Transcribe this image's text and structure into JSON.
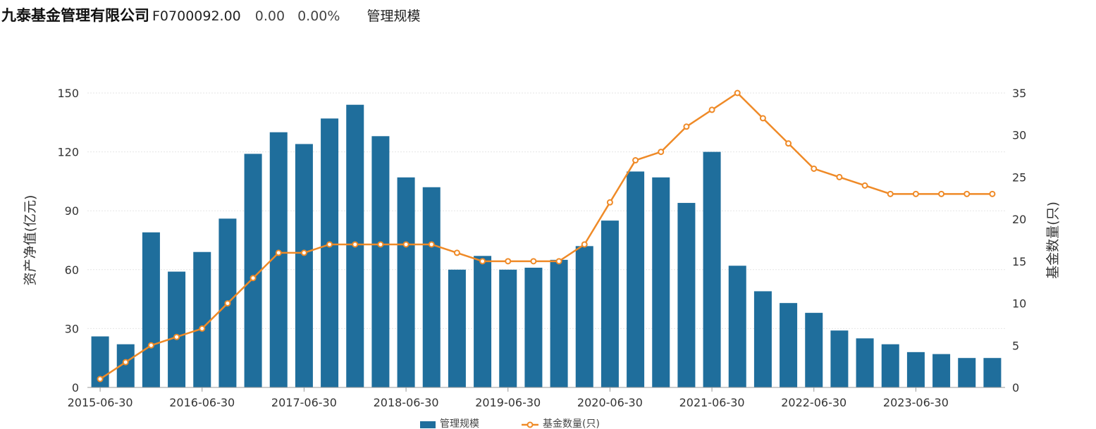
{
  "header": {
    "company": "九泰基金管理有限公司",
    "code": "F0700092.00",
    "price": "0.00",
    "change_pct": "0.00%",
    "tab": "管理规模"
  },
  "colors": {
    "bar": "#1f6e9c",
    "line": "#ef8a27"
  },
  "chart_data": {
    "type": "bar",
    "categories": [
      "2015-06-30",
      "2015-09-30",
      "2015-12-31",
      "2016-03-31",
      "2016-06-30",
      "2016-09-30",
      "2016-12-31",
      "2017-03-31",
      "2017-06-30",
      "2017-09-30",
      "2017-12-31",
      "2018-03-31",
      "2018-06-30",
      "2018-09-30",
      "2018-12-31",
      "2019-03-31",
      "2019-06-30",
      "2019-09-30",
      "2019-12-31",
      "2020-03-31",
      "2020-06-30",
      "2020-09-30",
      "2020-12-31",
      "2021-03-31",
      "2021-06-30",
      "2021-09-30",
      "2021-12-31",
      "2022-03-31",
      "2022-06-30",
      "2022-09-30",
      "2022-12-31",
      "2023-03-31",
      "2023-06-30",
      "2023-09-30",
      "2023-12-31",
      "2024-03-31"
    ],
    "x_tick_labels": [
      "2015-06-30",
      "2016-06-30",
      "2017-06-30",
      "2018-06-30",
      "2019-06-30",
      "2020-06-30",
      "2021-06-30",
      "2022-06-30",
      "2023-06-30"
    ],
    "series": [
      {
        "name": "管理规模",
        "axis": "left",
        "type": "bar",
        "values": [
          26,
          22,
          79,
          59,
          69,
          86,
          119,
          130,
          124,
          137,
          144,
          128,
          107,
          102,
          60,
          67,
          60,
          61,
          65,
          72,
          85,
          110,
          107,
          94,
          120,
          62,
          49,
          43,
          38,
          29,
          25,
          22,
          18,
          17,
          15,
          15
        ]
      },
      {
        "name": "基金数量(只)",
        "axis": "right",
        "type": "line",
        "values": [
          1,
          3,
          5,
          6,
          7,
          10,
          13,
          16,
          16,
          17,
          17,
          17,
          17,
          17,
          16,
          15,
          15,
          15,
          15,
          17,
          22,
          27,
          28,
          31,
          33,
          35,
          32,
          29,
          26,
          25,
          24,
          23,
          23,
          23,
          23,
          23
        ]
      }
    ],
    "y_left": {
      "label": "资产净值(亿元)",
      "ticks": [
        "0",
        "30",
        "60",
        "90",
        "120",
        "150"
      ],
      "lim": [
        0,
        150
      ]
    },
    "y_right": {
      "label": "基金数量(只)",
      "ticks": [
        "0",
        "5",
        "10",
        "15",
        "20",
        "25",
        "30",
        "35"
      ],
      "lim": [
        0,
        35
      ]
    },
    "grid": true,
    "legend": "bottom-center"
  }
}
